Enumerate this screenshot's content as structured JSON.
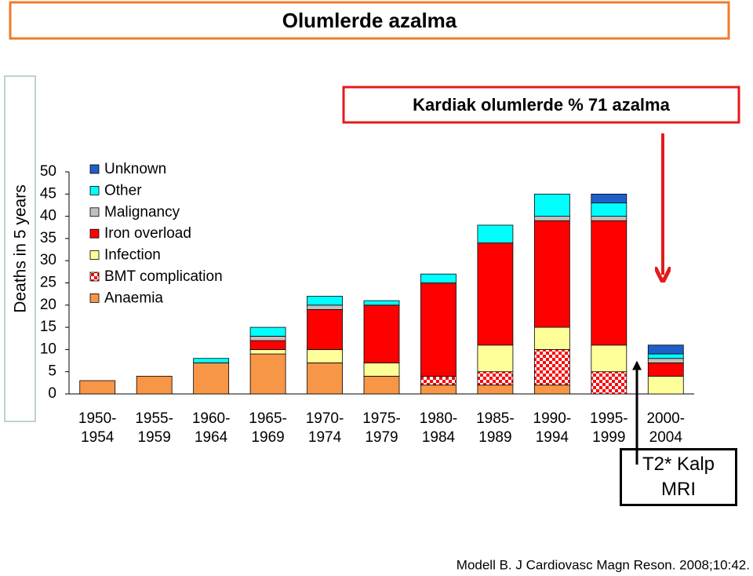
{
  "title": "Olumlerde azalma",
  "callout": "Kardiak olumlerde % 71 azalma",
  "note_box": "T2* Kalp\nMRI",
  "citation": "Modell B. J Cardiovasc Magn Reson. 2008;10:42.",
  "chart_data": {
    "type": "stacked_bar",
    "y_label": "Deaths in 5 years",
    "categories": [
      "1950-\n1954",
      "1955-\n1959",
      "1960-\n1964",
      "1965-\n1969",
      "1970-\n1974",
      "1975-\n1979",
      "1980-\n1984",
      "1985-\n1989",
      "1990-\n1994",
      "1995-\n1999",
      "2000-\n2004"
    ],
    "series": [
      {
        "name": "Anaemia",
        "color": "#f79646",
        "values": [
          3,
          4,
          7,
          9,
          7,
          4,
          2,
          2,
          2,
          0,
          0
        ]
      },
      {
        "name": "BMT complication",
        "color": "#ff0000",
        "pattern": "checkered",
        "values": [
          0,
          0,
          0,
          0,
          0,
          0,
          2,
          3,
          8,
          5,
          0
        ]
      },
      {
        "name": "Infection",
        "color": "#ffff99",
        "values": [
          0,
          0,
          0,
          1,
          3,
          3,
          0,
          6,
          5,
          6,
          4
        ]
      },
      {
        "name": "Iron overload",
        "color": "#ff0000",
        "values": [
          0,
          0,
          0,
          2,
          9,
          13,
          21,
          23,
          24,
          28,
          3
        ]
      },
      {
        "name": "Malignancy",
        "color": "#c0c0c0",
        "values": [
          0,
          0,
          0,
          1,
          1,
          0,
          0,
          0,
          1,
          1,
          1
        ]
      },
      {
        "name": "Other",
        "color": "#00ffff",
        "values": [
          0,
          0,
          1,
          2,
          2,
          1,
          2,
          4,
          5,
          3,
          1
        ]
      },
      {
        "name": "Unknown",
        "color": "#1f5fc8",
        "values": [
          0,
          0,
          0,
          0,
          0,
          0,
          0,
          0,
          0,
          2,
          2
        ]
      }
    ],
    "ylim": [
      0,
      50
    ],
    "yticks": [
      0,
      5,
      10,
      15,
      20,
      25,
      30,
      35,
      40,
      45,
      50
    ]
  }
}
